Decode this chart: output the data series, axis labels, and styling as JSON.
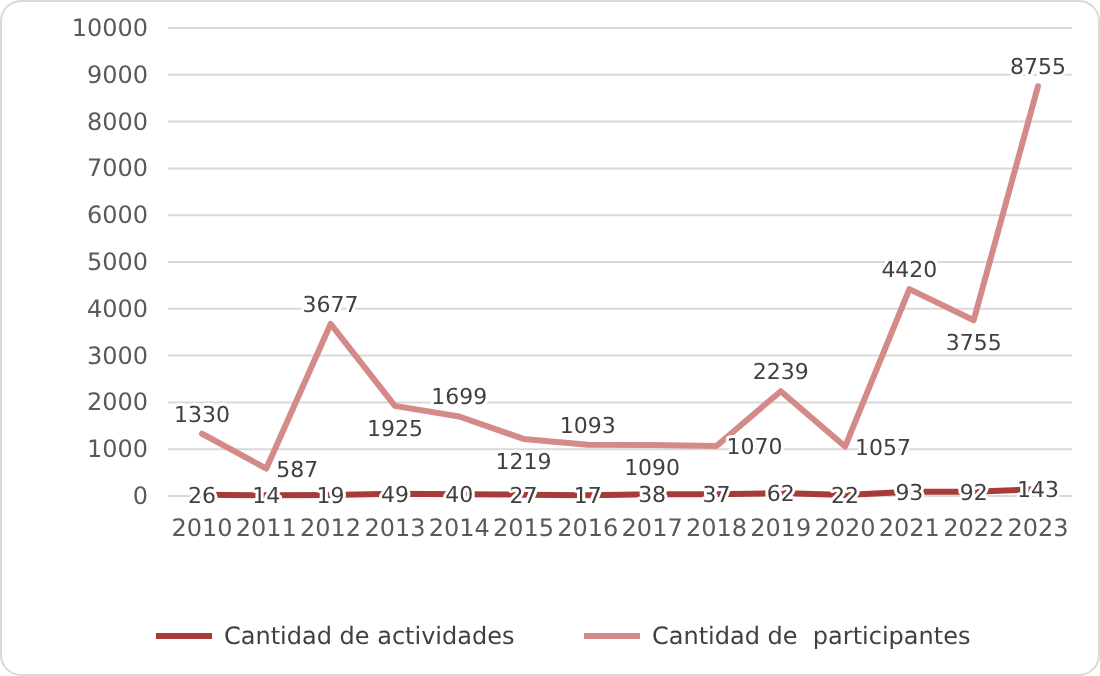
{
  "chart_data": {
    "type": "line",
    "categories": [
      "2010",
      "2011",
      "2012",
      "2013",
      "2014",
      "2015",
      "2016",
      "2017",
      "2018",
      "2019",
      "2020",
      "2021",
      "2022",
      "2023"
    ],
    "series": [
      {
        "name": "Cantidad de actividades",
        "color": "#a63b37",
        "values": [
          26,
          14,
          19,
          49,
          40,
          27,
          17,
          38,
          37,
          62,
          22,
          93,
          92,
          143
        ]
      },
      {
        "name": "Cantidad de  participantes",
        "color": "#d48a89",
        "values": [
          1330,
          587,
          3677,
          1925,
          1699,
          1219,
          1093,
          1090,
          1070,
          2239,
          1057,
          4420,
          3755,
          8755
        ]
      }
    ],
    "ylim": [
      0,
      10000
    ],
    "yticks": [
      0,
      1000,
      2000,
      3000,
      4000,
      5000,
      6000,
      7000,
      8000,
      9000,
      10000
    ],
    "grid": "y",
    "data_labels": true,
    "legend": "bottom",
    "marker": "none",
    "line_style": "solid"
  }
}
